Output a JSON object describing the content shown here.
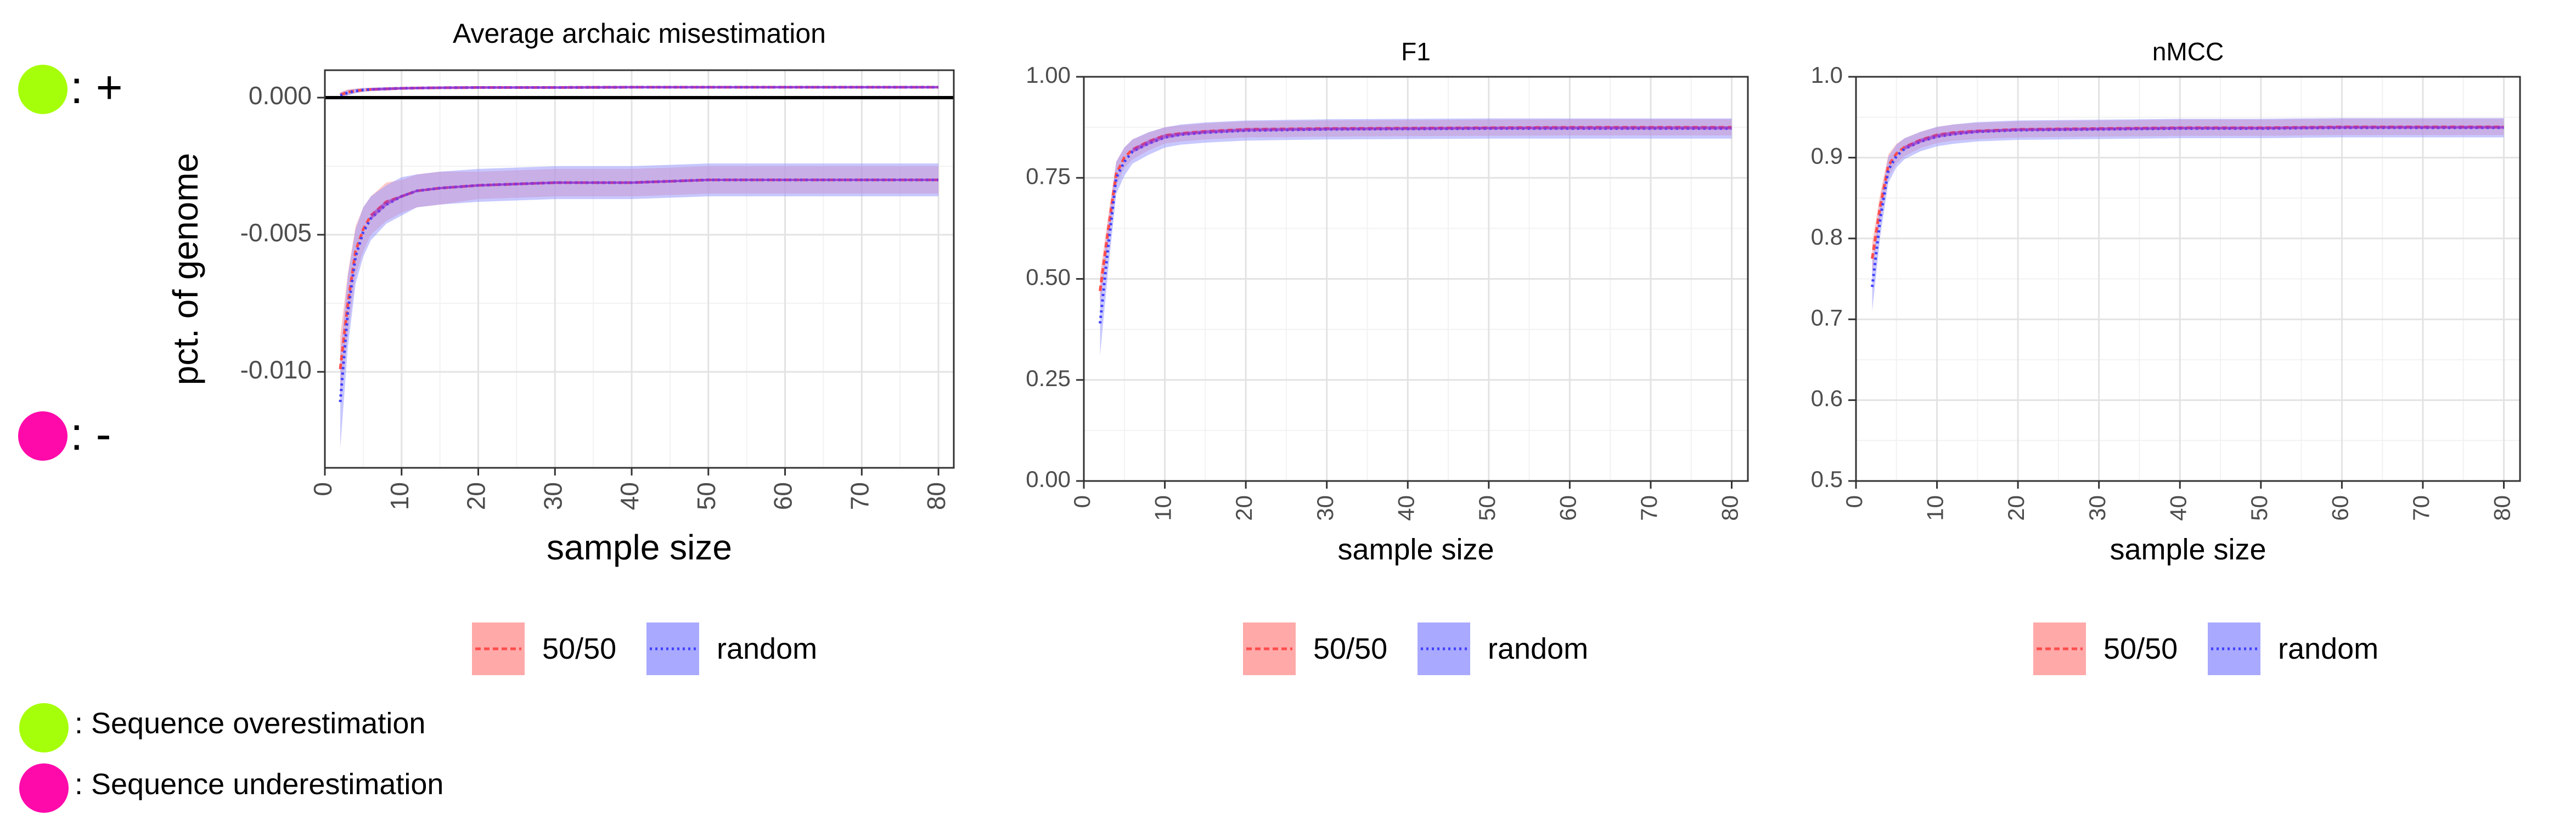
{
  "side_key": {
    "plus_label": ": +",
    "minus_label": ": -",
    "colors": {
      "over": "#a6ff0a",
      "under": "#ff0aaa"
    }
  },
  "footer_key": {
    "over_text": ": Sequence overestimation",
    "under_text": ": Sequence underestimation"
  },
  "series_colors": {
    "50/50": "#ff4d4d",
    "random": "#4040ff",
    "band_5050": "#ff9a9a",
    "band_random": "#9a9aff",
    "overlap_line": "#9933cc"
  },
  "chart_data": [
    {
      "type": "line",
      "title": "Average archaic misestimation",
      "xlabel": "sample size",
      "ylabel": "pct. of genome",
      "xlim": [
        0,
        82
      ],
      "ylim": [
        -0.0135,
        0.001
      ],
      "x_ticks": [
        0,
        10,
        20,
        30,
        40,
        50,
        60,
        70,
        80
      ],
      "y_ticks": [
        0.0,
        -0.005,
        -0.01
      ],
      "y_tick_labels": [
        "0.000",
        "-0.005",
        "-0.010"
      ],
      "grid": true,
      "hline": 0,
      "legend_position": "bottom",
      "x": [
        2,
        3,
        4,
        5,
        6,
        8,
        10,
        12,
        15,
        20,
        30,
        40,
        50,
        60,
        70,
        80
      ],
      "series": [
        {
          "name": "50/50",
          "group": "over",
          "values": [
            0.0001,
            0.0002,
            0.00025,
            0.00028,
            0.0003,
            0.00032,
            0.00034,
            0.00035,
            0.00036,
            0.00037,
            0.00037,
            0.00038,
            0.00038,
            0.00038,
            0.00038,
            0.00038
          ],
          "ci": [
            0.0001,
            0.0001,
            8e-05,
            7e-05,
            6e-05,
            6e-05,
            5e-05,
            5e-05,
            5e-05,
            5e-05,
            5e-05,
            5e-05,
            5e-05,
            5e-05,
            5e-05,
            5e-05
          ]
        },
        {
          "name": "random",
          "group": "over",
          "values": [
            8e-05,
            0.00018,
            0.00024,
            0.00028,
            0.0003,
            0.00032,
            0.00034,
            0.00035,
            0.00036,
            0.00037,
            0.00037,
            0.00038,
            0.00038,
            0.00038,
            0.00038,
            0.00038
          ],
          "ci": [
            0.0001,
            0.0001,
            8e-05,
            7e-05,
            6e-05,
            6e-05,
            5e-05,
            5e-05,
            5e-05,
            5e-05,
            5e-05,
            5e-05,
            5e-05,
            5e-05,
            5e-05,
            5e-05
          ]
        },
        {
          "name": "50/50",
          "group": "under",
          "values": [
            -0.0099,
            -0.0075,
            -0.0056,
            -0.0048,
            -0.0043,
            -0.0038,
            -0.0036,
            -0.0034,
            -0.0033,
            -0.0032,
            -0.0031,
            -0.0031,
            -0.003,
            -0.003,
            -0.003,
            -0.003
          ],
          "ci": [
            0.0012,
            0.0011,
            0.0009,
            0.0008,
            0.0007,
            0.0007,
            0.0006,
            0.0006,
            0.0006,
            0.0005,
            0.0005,
            0.0005,
            0.0005,
            0.0005,
            0.0005,
            0.0005
          ]
        },
        {
          "name": "random",
          "group": "under",
          "values": [
            -0.0111,
            -0.0078,
            -0.0058,
            -0.0049,
            -0.0044,
            -0.0039,
            -0.0036,
            -0.0034,
            -0.0033,
            -0.0032,
            -0.0031,
            -0.0031,
            -0.003,
            -0.003,
            -0.003,
            -0.003
          ],
          "ci": [
            0.0017,
            0.0013,
            0.001,
            0.0009,
            0.0008,
            0.0007,
            0.0007,
            0.0006,
            0.0006,
            0.0006,
            0.0006,
            0.0006,
            0.0006,
            0.0006,
            0.0006,
            0.0006
          ]
        }
      ],
      "legend": [
        "50/50",
        "random"
      ]
    },
    {
      "type": "line",
      "title": "F1",
      "xlabel": "sample size",
      "ylabel": "",
      "xlim": [
        0,
        82
      ],
      "ylim": [
        0,
        1
      ],
      "x_ticks": [
        0,
        10,
        20,
        30,
        40,
        50,
        60,
        70,
        80
      ],
      "y_ticks": [
        0,
        0.25,
        0.5,
        0.75,
        1
      ],
      "y_tick_labels": [
        "0.00",
        "0.25",
        "0.50",
        "0.75",
        "1.00"
      ],
      "grid": true,
      "legend_position": "bottom",
      "x": [
        2,
        3,
        4,
        5,
        6,
        8,
        10,
        12,
        15,
        20,
        30,
        40,
        50,
        60,
        70,
        80
      ],
      "series": [
        {
          "name": "50/50",
          "values": [
            0.47,
            0.62,
            0.76,
            0.8,
            0.82,
            0.84,
            0.855,
            0.86,
            0.865,
            0.87,
            0.872,
            0.873,
            0.874,
            0.875,
            0.875,
            0.875
          ],
          "ci": [
            0.04,
            0.035,
            0.03,
            0.025,
            0.025,
            0.022,
            0.02,
            0.02,
            0.02,
            0.02,
            0.02,
            0.02,
            0.02,
            0.02,
            0.02,
            0.02
          ]
        },
        {
          "name": "random",
          "values": [
            0.39,
            0.58,
            0.75,
            0.79,
            0.815,
            0.835,
            0.85,
            0.857,
            0.862,
            0.867,
            0.87,
            0.871,
            0.872,
            0.872,
            0.872,
            0.872
          ],
          "ci": [
            0.08,
            0.06,
            0.04,
            0.035,
            0.03,
            0.028,
            0.025,
            0.025,
            0.025,
            0.025,
            0.025,
            0.025,
            0.025,
            0.025,
            0.025,
            0.025
          ]
        }
      ],
      "legend": [
        "50/50",
        "random"
      ]
    },
    {
      "type": "line",
      "title": "nMCC",
      "xlabel": "sample size",
      "ylabel": "",
      "xlim": [
        0,
        82
      ],
      "ylim": [
        0.5,
        1
      ],
      "x_ticks": [
        0,
        10,
        20,
        30,
        40,
        50,
        60,
        70,
        80
      ],
      "y_ticks": [
        0.5,
        0.6,
        0.7,
        0.8,
        0.9,
        1.0
      ],
      "y_tick_labels": [
        "0.5",
        "0.6",
        "0.7",
        "0.8",
        "0.9",
        "1.0"
      ],
      "grid": true,
      "legend_position": "bottom",
      "x": [
        2,
        3,
        4,
        5,
        6,
        8,
        10,
        12,
        15,
        20,
        30,
        40,
        50,
        60,
        70,
        80
      ],
      "series": [
        {
          "name": "50/50",
          "values": [
            0.775,
            0.84,
            0.89,
            0.905,
            0.913,
            0.922,
            0.928,
            0.931,
            0.933,
            0.935,
            0.936,
            0.937,
            0.937,
            0.938,
            0.938,
            0.938
          ],
          "ci": [
            0.02,
            0.016,
            0.014,
            0.012,
            0.011,
            0.01,
            0.01,
            0.01,
            0.01,
            0.01,
            0.01,
            0.01,
            0.01,
            0.01,
            0.01,
            0.01
          ]
        },
        {
          "name": "random",
          "values": [
            0.74,
            0.825,
            0.885,
            0.902,
            0.911,
            0.92,
            0.926,
            0.929,
            0.932,
            0.934,
            0.935,
            0.936,
            0.936,
            0.937,
            0.937,
            0.937
          ],
          "ci": [
            0.03,
            0.022,
            0.016,
            0.014,
            0.013,
            0.012,
            0.012,
            0.012,
            0.012,
            0.012,
            0.012,
            0.012,
            0.012,
            0.012,
            0.012,
            0.012
          ]
        }
      ],
      "legend": [
        "50/50",
        "random"
      ]
    }
  ]
}
